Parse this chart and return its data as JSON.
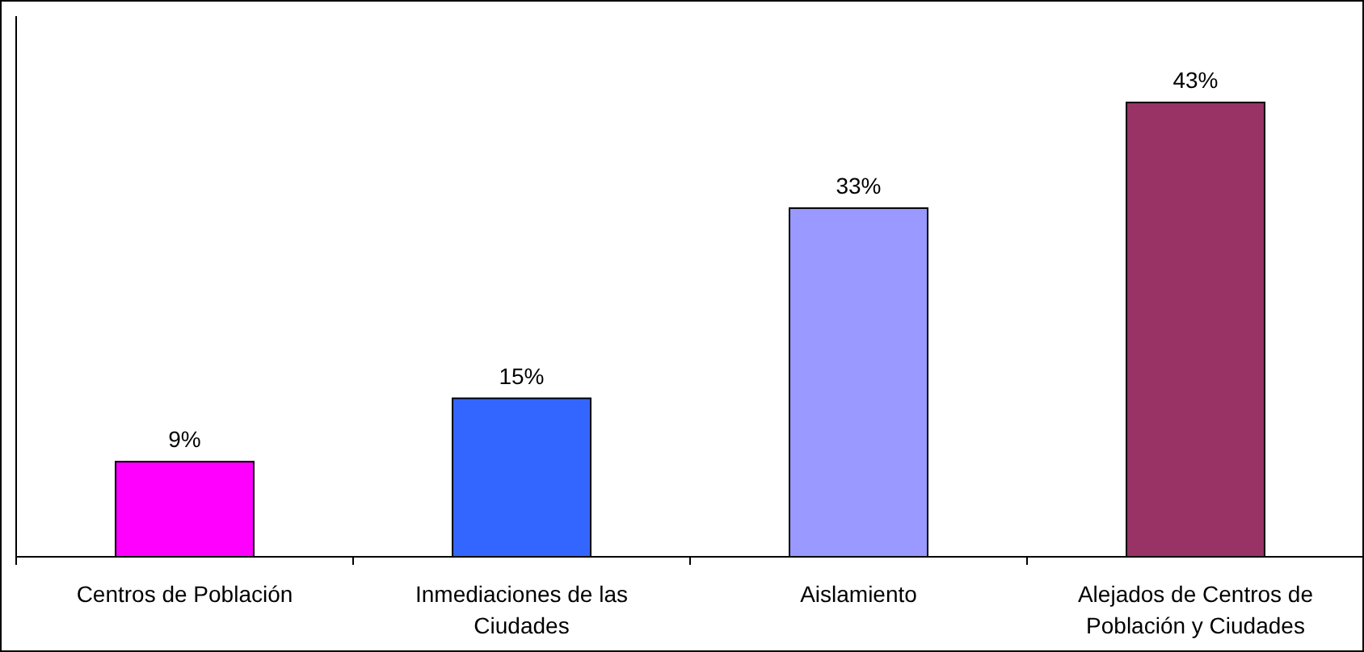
{
  "chart_data": {
    "type": "bar",
    "categories": [
      "Centros de Población",
      "Inmediaciones de las Ciudades",
      "Aislamiento",
      "Alejados de Centros de Población y Ciudades"
    ],
    "values": [
      9,
      15,
      33,
      43
    ],
    "colors": [
      "#ff00ff",
      "#3366ff",
      "#9999ff",
      "#993366"
    ],
    "value_labels": [
      "9%",
      "15%",
      "33%",
      "43%"
    ]
  }
}
